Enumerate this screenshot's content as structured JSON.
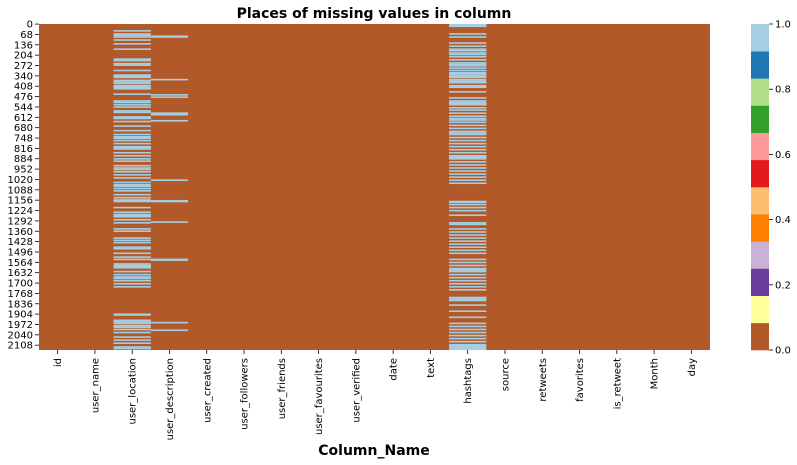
{
  "chart_data": {
    "type": "heatmap",
    "title": "Places of missing values in column",
    "xlabel": "Column_Name",
    "ylabel": "",
    "columns": [
      "id",
      "user_name",
      "user_location",
      "user_description",
      "user_created",
      "user_followers",
      "user_friends",
      "user_favourites",
      "user_verified",
      "date",
      "text",
      "hashtags",
      "source",
      "retweets",
      "favorites",
      "is_retweet",
      "Month",
      "day"
    ],
    "y_ticks": [
      "0",
      "68",
      "136",
      "204",
      "272",
      "340",
      "408",
      "476",
      "544",
      "612",
      "680",
      "748",
      "816",
      "884",
      "952",
      "1020",
      "1088",
      "1156",
      "1224",
      "1292",
      "1360",
      "1428",
      "1496",
      "1564",
      "1632",
      "1700",
      "1768",
      "1836",
      "1904",
      "1972",
      "2040",
      "2108"
    ],
    "row_count": 2140,
    "value_meaning": "1 = missing, 0 = present",
    "missing_rows": {
      "user_location": [
        40,
        60,
        70,
        80,
        100,
        125,
        160,
        225,
        235,
        255,
        265,
        300,
        330,
        335,
        345,
        365,
        375,
        385,
        400,
        410,
        420,
        455,
        500,
        510,
        525,
        540,
        565,
        575,
        605,
        610,
        615,
        635,
        665,
        695,
        720,
        735,
        745,
        760,
        780,
        800,
        805,
        810,
        815,
        840,
        860,
        880,
        895,
        925,
        940,
        950,
        965,
        985,
        1005,
        1035,
        1050,
        1060,
        1075,
        1090,
        1115,
        1135,
        1150,
        1155,
        1160,
        1200,
        1230,
        1245,
        1250,
        1260,
        1280,
        1300,
        1340,
        1355,
        1400,
        1415,
        1430,
        1460,
        1470,
        1500,
        1525,
        1540,
        1570,
        1580,
        1585,
        1595,
        1620,
        1640,
        1655,
        1665,
        1680,
        1700,
        1720,
        1900,
        1905,
        1940,
        1950,
        1960,
        1975,
        1985,
        2000,
        2020,
        2050,
        2070,
        2090,
        2115,
        2125
      ],
      "user_description": [
        75,
        80,
        360,
        460,
        475,
        580,
        590,
        630,
        1020,
        1155,
        1160,
        1295,
        1540,
        1545,
        1955,
        2005
      ],
      "hashtags": [
        0,
        5,
        10,
        60,
        80,
        120,
        140,
        160,
        170,
        185,
        195,
        210,
        230,
        250,
        260,
        270,
        285,
        300,
        315,
        320,
        330,
        340,
        345,
        360,
        370,
        380,
        400,
        410,
        440,
        480,
        500,
        510,
        515,
        520,
        525,
        545,
        560,
        580,
        600,
        615,
        625,
        640,
        660,
        680,
        700,
        710,
        720,
        740,
        760,
        780,
        800,
        820,
        840,
        860,
        865,
        870,
        875,
        880,
        900,
        920,
        940,
        960,
        980,
        1000,
        1020,
        1040,
        1160,
        1165,
        1180,
        1200,
        1220,
        1250,
        1300,
        1310,
        1340,
        1360,
        1380,
        1400,
        1420,
        1440,
        1460,
        1480,
        1500,
        1540,
        1560,
        1580,
        1600,
        1605,
        1610,
        1620,
        1640,
        1660,
        1680,
        1700,
        1720,
        1740,
        1790,
        1795,
        1800,
        1810,
        1840,
        1880,
        1920,
        1960,
        1980,
        2000,
        2020,
        2040,
        2060,
        2080,
        2100,
        2110,
        2120,
        2130
      ]
    },
    "colorbar": {
      "ticks": [
        "0.0",
        "0.2",
        "0.4",
        "0.6",
        "0.8",
        "1.0"
      ],
      "range": [
        0,
        1
      ],
      "colors": [
        "#b15928",
        "#ffff99",
        "#6a3d9a",
        "#cab2d6",
        "#ff7f00",
        "#fdbf6f",
        "#e31a1c",
        "#fb9a99",
        "#33a02c",
        "#b2df8a",
        "#1f78b4",
        "#a6cee3"
      ]
    },
    "present_color": "#b15928",
    "missing_color": "#a6cee3",
    "grid": false
  }
}
